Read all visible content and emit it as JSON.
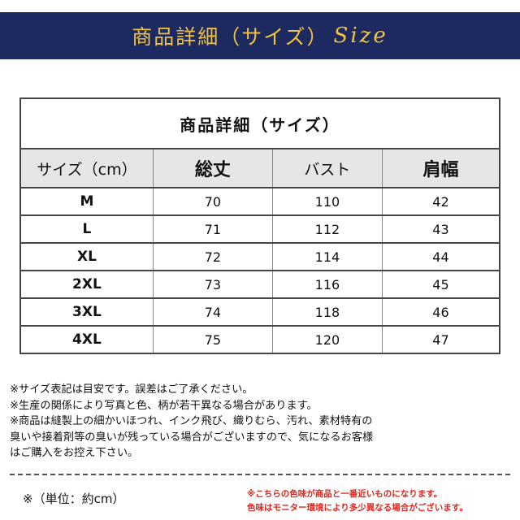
{
  "banner": {
    "title": "商品詳細（サイズ）",
    "script": "Size"
  },
  "table": {
    "title": "商品詳細（サイズ）",
    "headers": [
      "サイズ（cm）",
      "総丈",
      "バスト",
      "肩幅"
    ],
    "rows": [
      [
        "M",
        "70",
        "110",
        "42"
      ],
      [
        "L",
        "71",
        "112",
        "43"
      ],
      [
        "XL",
        "72",
        "114",
        "44"
      ],
      [
        "2XL",
        "73",
        "116",
        "45"
      ],
      [
        "3XL",
        "74",
        "118",
        "46"
      ],
      [
        "4XL",
        "75",
        "120",
        "47"
      ]
    ]
  },
  "notes": [
    "※サイズ表記は目安です。誤差はご了承ください。",
    "※生産の関係により写真と色、柄が若干異なる場合があります。",
    "※商品は縫製上の細かいほつれ、インク飛び、織りむら、汚れ、素材特有の",
    "臭いや接着剤等の臭いが残っている場合がございますので、気になるお客様",
    "はご購入をお控え下さい。"
  ],
  "unit": "※（単位：約cm）",
  "color_note": [
    "※こちらの色味が商品と一番近いものになります。",
    "色味はモニター環境により多少異なる場合がございます。"
  ],
  "colors": {
    "banner_bg": "#1d2a62",
    "banner_text": "#f2c23a",
    "header_bg": "#e6e6e6",
    "note_red": "#e0261e"
  }
}
